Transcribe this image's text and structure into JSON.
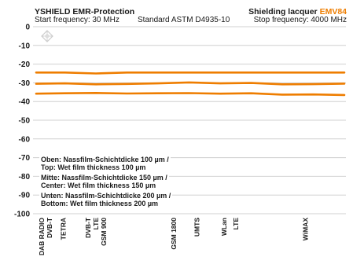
{
  "header": {
    "brand": "YSHIELD EMR-Protection",
    "start_frequency": "Start frequency: 30 MHz",
    "standard": "Standard ASTM D4935-10",
    "product": "Shielding lacquer",
    "product_code": "EMV84",
    "stop_frequency": "Stop frequency: 4000 MHz"
  },
  "legend": {
    "top_de": "Oben: Nassfilm-Schichtdicke 100 µm /",
    "top_en": "Top: Wet film thickness 100 µm",
    "center_de": "Mitte: Nassfilm-Schichtdicke 150 µm /",
    "center_en": "Center: Wet film thickness 150 µm",
    "bottom_de": "Unten: Nassfilm-Schichtdicke 200 µm /",
    "bottom_en": "Bottom: Wet film thickness 200 µm"
  },
  "colors": {
    "series": "#ee7d00",
    "grid": "#d0d0d0",
    "accent": "#ee7d00"
  },
  "chart_data": {
    "type": "line",
    "xlim": [
      30,
      4000
    ],
    "ylim": [
      -100,
      0
    ],
    "yticks": [
      0,
      -10,
      -20,
      -30,
      -40,
      -50,
      -60,
      -70,
      -80,
      -90,
      -100
    ],
    "grid": true,
    "x_tick_labels": [
      {
        "x": 100,
        "label": "DAB RADIO"
      },
      {
        "x": 200,
        "label": "DVB-T"
      },
      {
        "x": 380,
        "label": "TETRA"
      },
      {
        "x": 700,
        "label": "DVB-T"
      },
      {
        "x": 800,
        "label": "LTE"
      },
      {
        "x": 900,
        "label": "GSM 900"
      },
      {
        "x": 1800,
        "label": "GSM 1800"
      },
      {
        "x": 2100,
        "label": "UMTS"
      },
      {
        "x": 2450,
        "label": "WLan"
      },
      {
        "x": 2600,
        "label": "LTE"
      },
      {
        "x": 3500,
        "label": "WiMAX"
      }
    ],
    "series": [
      {
        "x": [
          30,
          400,
          800,
          1200,
          1600,
          2000,
          2400,
          2800,
          3200,
          3600,
          4000
        ],
        "values": [
          -24.5,
          -24.5,
          -25,
          -24.5,
          -24.5,
          -24.5,
          -24.5,
          -24.5,
          -24.5,
          -24.5,
          -24.5
        ]
      },
      {
        "x": [
          30,
          400,
          800,
          1200,
          1600,
          2000,
          2400,
          2800,
          3200,
          3600,
          4000
        ],
        "values": [
          -30.5,
          -30.3,
          -30.8,
          -30.6,
          -30.3,
          -29.8,
          -30.3,
          -30.1,
          -30.8,
          -30.7,
          -30.4
        ]
      },
      {
        "x": [
          30,
          400,
          800,
          1200,
          1600,
          2000,
          2400,
          2800,
          3200,
          3600,
          4000
        ],
        "values": [
          -35.8,
          -35.6,
          -35.4,
          -35.7,
          -35.6,
          -35.5,
          -35.8,
          -35.6,
          -36.3,
          -36.2,
          -36.5
        ]
      }
    ]
  }
}
